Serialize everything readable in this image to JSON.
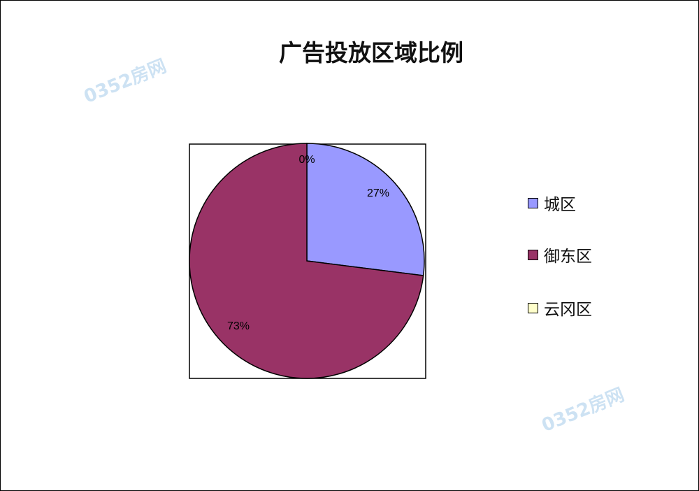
{
  "chart_data": {
    "type": "pie",
    "title": "广告投放区域比例",
    "categories": [
      "城区",
      "御东区",
      "云冈区"
    ],
    "values": [
      27,
      73,
      0
    ],
    "data_labels": [
      "27%",
      "73%",
      "0%"
    ],
    "colors": [
      "#9999ff",
      "#993366",
      "#ffffcc"
    ],
    "start_angle": "top, clockwise",
    "legend_position": "right"
  },
  "watermark": "0352房网"
}
